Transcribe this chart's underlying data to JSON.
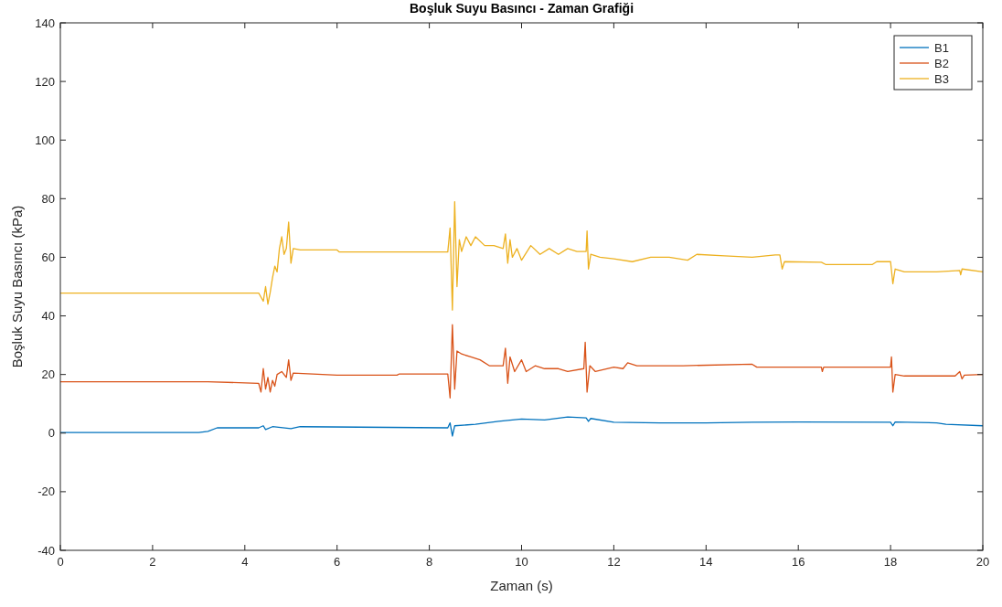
{
  "chart_data": {
    "type": "line",
    "title": "Boşluk Suyu Basıncı - Zaman Grafiği",
    "xlabel": "Zaman (s)",
    "ylabel": "Boşluk Suyu Basıncı (kPa)",
    "xlim": [
      0,
      20
    ],
    "xticks": [
      0,
      2,
      4,
      6,
      8,
      10,
      12,
      14,
      16,
      18,
      20
    ],
    "ylim": [
      -40,
      140
    ],
    "yticks": [
      -40,
      -20,
      0,
      20,
      40,
      60,
      80,
      100,
      120,
      140
    ],
    "grid": false,
    "legend": "top right",
    "series": [
      {
        "name": "B1",
        "color": "#0072bd",
        "x": [
          0,
          3.0,
          3.2,
          3.4,
          4.3,
          4.4,
          4.45,
          4.6,
          5.0,
          5.2,
          8.4,
          8.45,
          8.5,
          8.55,
          9.0,
          9.5,
          10.0,
          10.5,
          11.0,
          11.4,
          11.45,
          11.5,
          12.0,
          13.0,
          14.0,
          15.0,
          16.0,
          18.0,
          18.05,
          18.1,
          19.0,
          19.2,
          20
        ],
        "values": [
          0.2,
          0.2,
          0.6,
          1.8,
          1.8,
          2.5,
          1.2,
          2.2,
          1.5,
          2.2,
          1.8,
          3.5,
          -1,
          2.5,
          3,
          4,
          4.8,
          4.5,
          5.5,
          5.2,
          4,
          5,
          3.7,
          3.5,
          3.5,
          3.7,
          3.8,
          3.7,
          2.5,
          3.8,
          3.5,
          3,
          2.5
        ]
      },
      {
        "name": "B2",
        "color": "#d95319",
        "x": [
          0,
          3.2,
          4.3,
          4.35,
          4.4,
          4.45,
          4.5,
          4.55,
          4.6,
          4.65,
          4.7,
          4.8,
          4.9,
          4.95,
          5.0,
          5.05,
          6.0,
          7.3,
          7.35,
          8.4,
          8.45,
          8.5,
          8.55,
          8.6,
          8.7,
          8.9,
          9.1,
          9.3,
          9.6,
          9.65,
          9.7,
          9.75,
          9.85,
          10.0,
          10.1,
          10.3,
          10.5,
          10.8,
          11.0,
          11.35,
          11.38,
          11.42,
          11.48,
          11.6,
          12.0,
          12.2,
          12.3,
          12.5,
          13.5,
          15.0,
          15.1,
          16.5,
          16.52,
          16.55,
          17.5,
          18.0,
          18.02,
          18.05,
          18.1,
          18.3,
          19.4,
          19.5,
          19.55,
          19.6,
          20
        ],
        "values": [
          17.5,
          17.5,
          17,
          14,
          22,
          15,
          19,
          14,
          18,
          16,
          20,
          21,
          19,
          25,
          18,
          20.5,
          19.8,
          19.8,
          20.2,
          20.2,
          12,
          37,
          15,
          28,
          27,
          26,
          25,
          23,
          23,
          29,
          17,
          26,
          21,
          25,
          21,
          23,
          22,
          22,
          21,
          22,
          31,
          14,
          23,
          21,
          22.5,
          22,
          24,
          23,
          23,
          23.5,
          22.5,
          22.5,
          21,
          22.5,
          22.5,
          22.5,
          26,
          14,
          20,
          19.5,
          19.5,
          21,
          18.5,
          19.8,
          20
        ]
      },
      {
        "name": "B3",
        "color": "#edb120",
        "x": [
          0,
          4.3,
          4.4,
          4.45,
          4.5,
          4.55,
          4.6,
          4.65,
          4.7,
          4.75,
          4.8,
          4.85,
          4.9,
          4.95,
          5.0,
          5.05,
          5.2,
          6.0,
          6.05,
          8.4,
          8.45,
          8.5,
          8.55,
          8.6,
          8.65,
          8.7,
          8.8,
          8.9,
          9.0,
          9.2,
          9.4,
          9.6,
          9.65,
          9.7,
          9.75,
          9.8,
          9.9,
          10.0,
          10.2,
          10.4,
          10.6,
          10.8,
          11.0,
          11.2,
          11.4,
          11.42,
          11.45,
          11.5,
          11.7,
          12.0,
          12.4,
          12.8,
          13.2,
          13.6,
          13.8,
          14.4,
          15.0,
          15.5,
          15.6,
          15.65,
          15.7,
          16.5,
          16.6,
          17.6,
          17.7,
          18.0,
          18.05,
          18.1,
          18.3,
          19.0,
          19.5,
          19.52,
          19.55,
          20
        ],
        "values": [
          47.8,
          47.8,
          45,
          50,
          44,
          48,
          53,
          57,
          55,
          63,
          67,
          61,
          63,
          72,
          58,
          63,
          62.5,
          62.5,
          61.8,
          61.8,
          70,
          42,
          79,
          50,
          66,
          62,
          67,
          64,
          67,
          64,
          64,
          63,
          68,
          58,
          66,
          60,
          63,
          59,
          64,
          61,
          63,
          61,
          63,
          62,
          62,
          69,
          56,
          61,
          60,
          59.5,
          58.5,
          60,
          60,
          59,
          61,
          60.5,
          60,
          60.8,
          60.8,
          56,
          58.5,
          58.3,
          57.5,
          57.5,
          58.5,
          58.5,
          51,
          56,
          55,
          55,
          55.5,
          54,
          56,
          55
        ]
      }
    ]
  }
}
